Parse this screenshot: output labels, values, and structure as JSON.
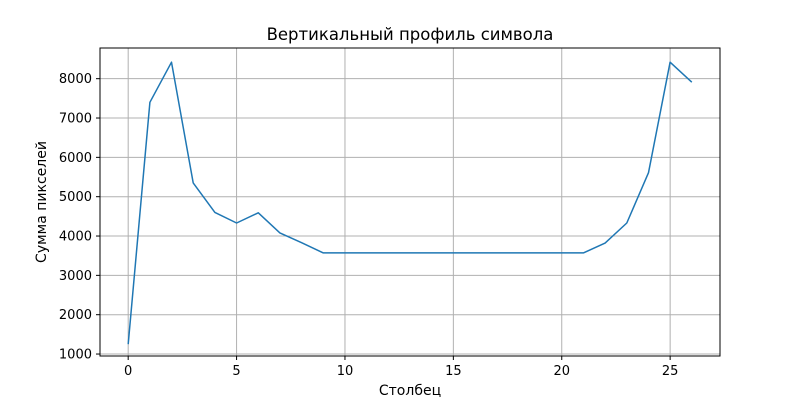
{
  "chart_data": {
    "type": "line",
    "title": "Вертикальный профиль символа",
    "xlabel": "Столбец",
    "ylabel": "Сумма пикселей",
    "xlim": [
      -1.3,
      27.3
    ],
    "ylim": [
      950,
      8780
    ],
    "xticks": [
      0,
      5,
      10,
      15,
      20,
      25
    ],
    "yticks": [
      1000,
      2000,
      3000,
      4000,
      5000,
      6000,
      7000,
      8000
    ],
    "grid": true,
    "line_color": "#1f77b4",
    "series": [
      {
        "x": [
          0,
          1,
          2,
          3,
          4,
          5,
          6,
          7,
          8,
          9,
          10,
          11,
          12,
          13,
          14,
          15,
          16,
          17,
          18,
          19,
          20,
          21,
          22,
          23,
          24,
          25,
          26
        ],
        "values": [
          1250,
          7400,
          8420,
          5350,
          4600,
          4330,
          4590,
          4080,
          3830,
          3570,
          3570,
          3570,
          3570,
          3570,
          3570,
          3570,
          3570,
          3570,
          3570,
          3570,
          3570,
          3570,
          3820,
          4330,
          5610,
          8420,
          7910
        ]
      }
    ]
  }
}
